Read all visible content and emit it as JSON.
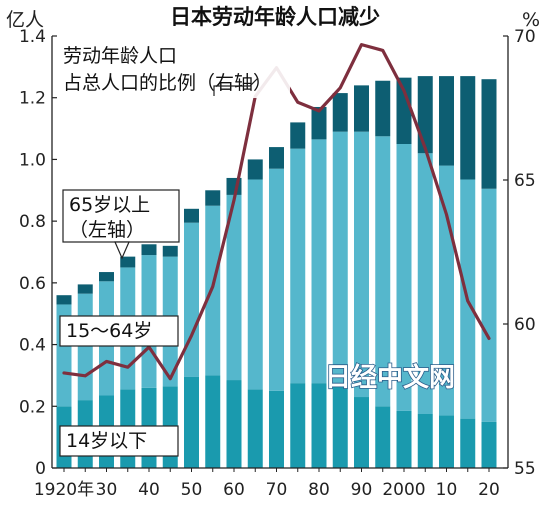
{
  "chart_data": {
    "type": "bar",
    "title": "日本劳动年龄人口减少",
    "left_axis": {
      "label": "亿人",
      "ylim": [
        0,
        1.4
      ],
      "ticks": [
        0,
        0.2,
        0.4,
        0.6,
        0.8,
        1.0,
        1.2,
        1.4
      ],
      "tick_labels": [
        "0",
        "0.2",
        "0.4",
        "0.6",
        "0.8",
        "1.0",
        "1.2",
        "1.4"
      ]
    },
    "right_axis": {
      "label": "%",
      "ylim": [
        55,
        70
      ],
      "ticks": [
        55,
        60,
        65,
        70
      ],
      "tick_labels": [
        "55",
        "60",
        "65",
        "70"
      ]
    },
    "x": [
      1920,
      1925,
      1930,
      1935,
      1940,
      1945,
      1950,
      1955,
      1960,
      1965,
      1970,
      1975,
      1980,
      1985,
      1990,
      1995,
      2000,
      2005,
      2010,
      2015,
      2020
    ],
    "x_tick_labels": [
      {
        "year": 1920,
        "text": "1920年"
      },
      {
        "year": 1930,
        "text": "30"
      },
      {
        "year": 1940,
        "text": "40"
      },
      {
        "year": 1950,
        "text": "50"
      },
      {
        "year": 1960,
        "text": "60"
      },
      {
        "year": 1970,
        "text": "70"
      },
      {
        "year": 1980,
        "text": "80"
      },
      {
        "year": 1990,
        "text": "90"
      },
      {
        "year": 2000,
        "text": "2000"
      },
      {
        "year": 2010,
        "text": "10"
      },
      {
        "year": 2020,
        "text": "20"
      }
    ],
    "series": [
      {
        "name": "14岁以下",
        "axis": "left",
        "color": "#1a9aae",
        "values": [
          0.2,
          0.22,
          0.235,
          0.255,
          0.26,
          0.265,
          0.295,
          0.3,
          0.285,
          0.255,
          0.25,
          0.275,
          0.275,
          0.265,
          0.23,
          0.2,
          0.185,
          0.175,
          0.17,
          0.16,
          0.15
        ]
      },
      {
        "name": "15～64岁",
        "axis": "left",
        "color": "#55b7cc",
        "values": [
          0.33,
          0.345,
          0.37,
          0.395,
          0.43,
          0.42,
          0.5,
          0.55,
          0.6,
          0.68,
          0.72,
          0.76,
          0.79,
          0.825,
          0.86,
          0.875,
          0.865,
          0.845,
          0.81,
          0.775,
          0.755
        ]
      },
      {
        "name": "65岁以上",
        "axis": "left",
        "color": "#0d5e72",
        "values": [
          0.03,
          0.03,
          0.03,
          0.035,
          0.035,
          0.035,
          0.045,
          0.05,
          0.055,
          0.065,
          0.07,
          0.085,
          0.105,
          0.125,
          0.15,
          0.18,
          0.215,
          0.25,
          0.29,
          0.335,
          0.355
        ]
      },
      {
        "name": "劳动年龄人口占总人口的比例（右轴）",
        "axis": "right",
        "type": "line",
        "color": "#7e2f3e",
        "values": [
          58.3,
          58.2,
          58.7,
          58.5,
          59.2,
          58.1,
          59.6,
          61.3,
          64.3,
          67.9,
          68.9,
          67.7,
          67.4,
          68.2,
          69.7,
          69.5,
          68.1,
          66.1,
          63.8,
          60.8,
          59.5
        ]
      }
    ],
    "annotations": [
      {
        "text_lines": [
          "65岁以上",
          "（左轴）"
        ],
        "target": "65岁以上"
      },
      {
        "text_lines": [
          "15～64岁"
        ],
        "target": "15～64岁"
      },
      {
        "text_lines": [
          "14岁以下"
        ],
        "target": "14岁以下"
      },
      {
        "text_lines": [
          "劳动年龄人口",
          "占总人口的比例（右轴）"
        ],
        "target": "line"
      }
    ],
    "watermark": "日经中文网",
    "grid": false,
    "legend": "none"
  }
}
